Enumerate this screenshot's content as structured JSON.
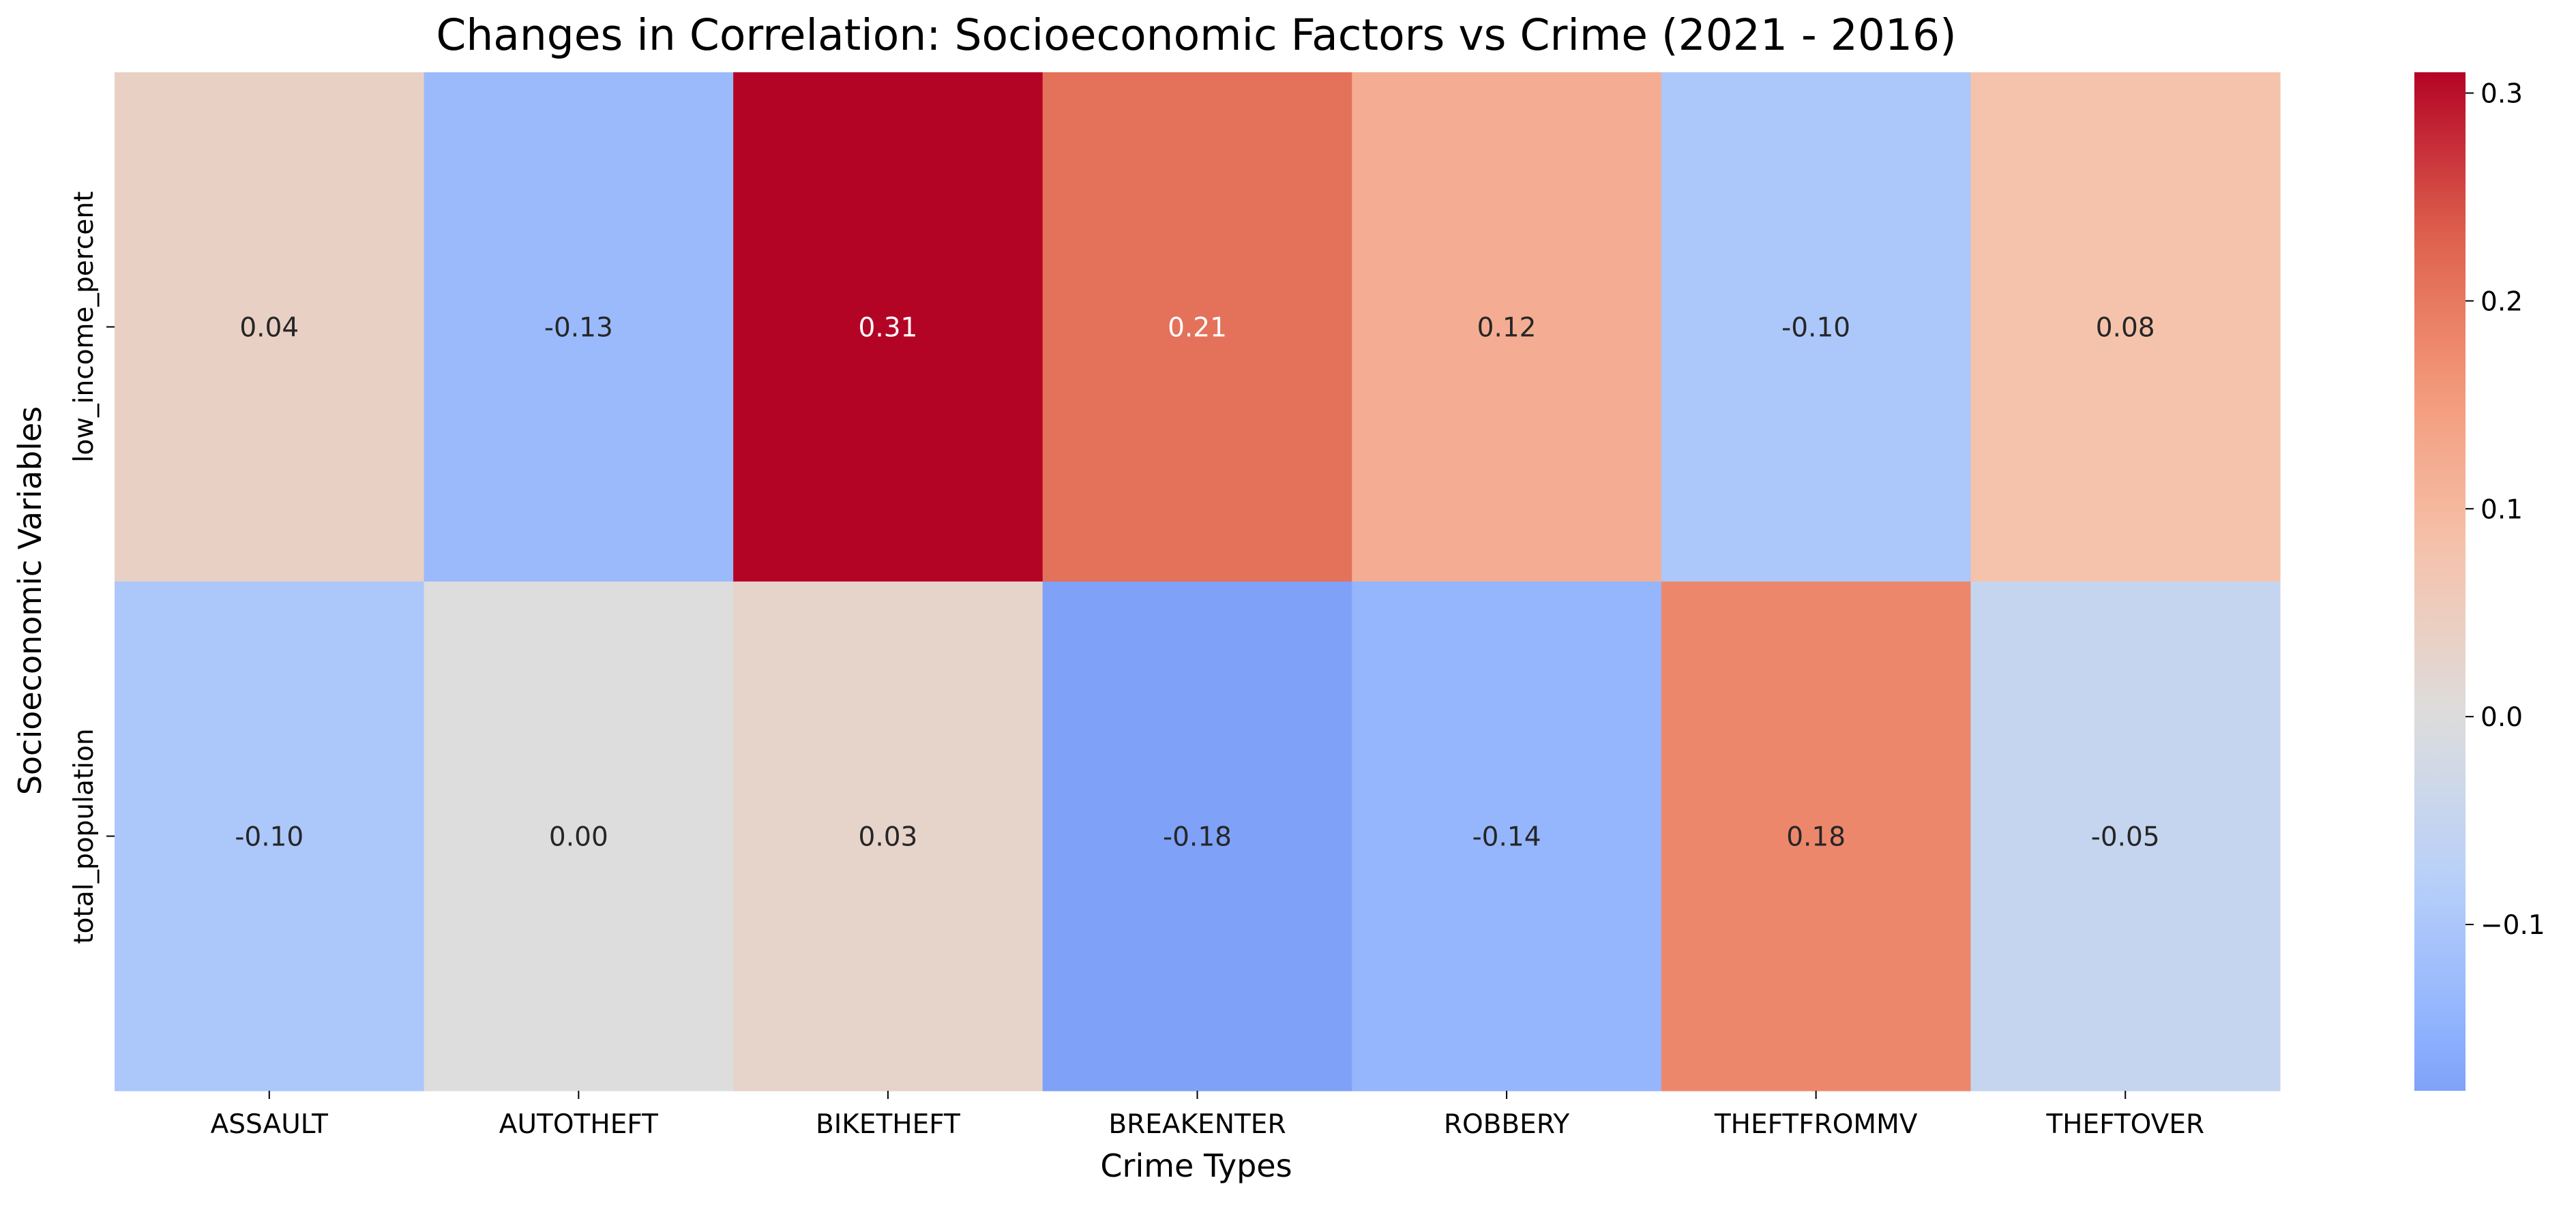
{
  "chart_data": {
    "type": "heatmap",
    "title": "Changes in Correlation: Socioeconomic Factors vs Crime (2021 - 2016)",
    "xlabel": "Crime Types",
    "ylabel": "Socioeconomic Variables",
    "x_categories": [
      "ASSAULT",
      "AUTOTHEFT",
      "BIKETHEFT",
      "BREAKENTER",
      "ROBBERY",
      "THEFTFROMMV",
      "THEFTOVER"
    ],
    "y_categories": [
      "low_income_percent",
      "total_population"
    ],
    "values": [
      [
        0.04,
        -0.13,
        0.31,
        0.21,
        0.12,
        -0.1,
        0.08
      ],
      [
        -0.1,
        0.0,
        0.03,
        -0.18,
        -0.14,
        0.18,
        -0.05
      ]
    ],
    "value_labels": [
      [
        "0.04",
        "-0.13",
        "0.31",
        "0.21",
        "0.12",
        "-0.10",
        "0.08"
      ],
      [
        "-0.10",
        "0.00",
        "0.03",
        "-0.18",
        "-0.14",
        "0.18",
        "-0.05"
      ]
    ],
    "colormap": "coolwarm",
    "center": 0.0,
    "vmin": -0.18,
    "vmax": 0.31,
    "colorbar_ticks": [
      0.3,
      0.2,
      0.1,
      0.0,
      -0.1
    ],
    "colorbar_tick_labels": [
      "0.3",
      "0.2",
      "0.1",
      "0.0",
      "−0.1"
    ],
    "grid": false
  }
}
